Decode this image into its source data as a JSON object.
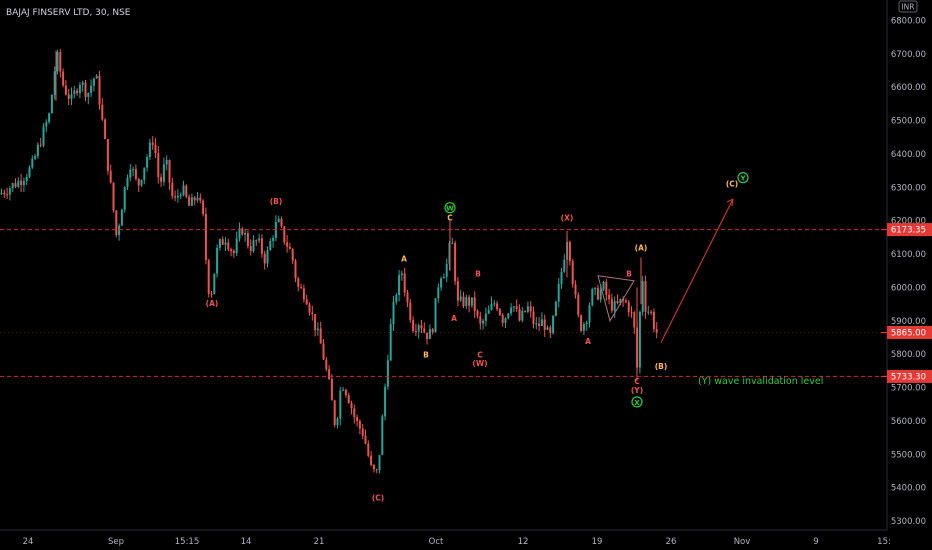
{
  "header": {
    "title": "BAJAJ FINSERV LTD, 30, NSE"
  },
  "currency_badge": "INR",
  "colors": {
    "background": "#000000",
    "up": "#26a69a",
    "down": "#ef5350",
    "level_line": "#d12b2b",
    "axis_text": "#b2b5be",
    "wave_orange": "#ffb74d",
    "wave_red": "#ef5350",
    "wave_green": "#2ecc40",
    "badge_red": "#e53935"
  },
  "chart_data": {
    "type": "candlestick",
    "title": "BAJAJ FINSERV LTD, 30, NSE",
    "y_ticks": [
      "6800.00",
      "6700.00",
      "6600.00",
      "6500.00",
      "6400.00",
      "6300.00",
      "6200.00",
      "6100.00",
      "6000.00",
      "5900.00",
      "5800.00",
      "5700.00",
      "5600.00",
      "5500.00",
      "5400.00",
      "5300.00"
    ],
    "y_tick_values": [
      6800,
      6700,
      6600,
      6500,
      6400,
      6300,
      6200,
      6100,
      6000,
      5900,
      5800,
      5700,
      5600,
      5500,
      5400,
      5300
    ],
    "ylim": [
      5280,
      6840
    ],
    "x_ticks": [
      "24",
      "Sep",
      "15:15",
      "14",
      "21",
      "Oct",
      "12",
      "19",
      "26",
      "Nov",
      "9",
      "15:"
    ],
    "price_path": [
      [
        0,
        6280
      ],
      [
        20,
        6320
      ],
      [
        32,
        6360
      ],
      [
        42,
        6450
      ],
      [
        50,
        6520
      ],
      [
        57,
        6700
      ],
      [
        64,
        6600
      ],
      [
        72,
        6560
      ],
      [
        80,
        6620
      ],
      [
        88,
        6580
      ],
      [
        96,
        6640
      ],
      [
        100,
        6560
      ],
      [
        106,
        6420
      ],
      [
        112,
        6280
      ],
      [
        117,
        6150
      ],
      [
        123,
        6260
      ],
      [
        130,
        6380
      ],
      [
        138,
        6300
      ],
      [
        146,
        6380
      ],
      [
        154,
        6450
      ],
      [
        160,
        6300
      ],
      [
        166,
        6380
      ],
      [
        174,
        6250
      ],
      [
        182,
        6300
      ],
      [
        190,
        6240
      ],
      [
        198,
        6280
      ],
      [
        204,
        6200
      ],
      [
        208,
        6000
      ],
      [
        212,
        5990
      ],
      [
        218,
        6120
      ],
      [
        226,
        6150
      ],
      [
        234,
        6100
      ],
      [
        242,
        6180
      ],
      [
        250,
        6120
      ],
      [
        258,
        6140
      ],
      [
        266,
        6080
      ],
      [
        272,
        6150
      ],
      [
        278,
        6200
      ],
      [
        284,
        6150
      ],
      [
        292,
        6100
      ],
      [
        298,
        6000
      ],
      [
        306,
        5980
      ],
      [
        314,
        5900
      ],
      [
        322,
        5820
      ],
      [
        330,
        5700
      ],
      [
        336,
        5580
      ],
      [
        342,
        5720
      ],
      [
        348,
        5680
      ],
      [
        356,
        5600
      ],
      [
        364,
        5560
      ],
      [
        372,
        5450
      ],
      [
        378,
        5440
      ],
      [
        384,
        5650
      ],
      [
        390,
        5860
      ],
      [
        396,
        5980
      ],
      [
        402,
        6050
      ],
      [
        408,
        5950
      ],
      [
        414,
        5880
      ],
      [
        420,
        5900
      ],
      [
        426,
        5860
      ],
      [
        432,
        5860
      ],
      [
        440,
        6040
      ],
      [
        446,
        6050
      ],
      [
        452,
        6150
      ],
      [
        458,
        5950
      ],
      [
        466,
        5960
      ],
      [
        474,
        5950
      ],
      [
        480,
        5880
      ],
      [
        488,
        5920
      ],
      [
        496,
        5960
      ],
      [
        504,
        5900
      ],
      [
        512,
        5960
      ],
      [
        520,
        5900
      ],
      [
        528,
        5940
      ],
      [
        536,
        5880
      ],
      [
        544,
        5900
      ],
      [
        550,
        5840
      ],
      [
        556,
        5940
      ],
      [
        562,
        6050
      ],
      [
        568,
        6160
      ],
      [
        574,
        6000
      ],
      [
        580,
        5880
      ],
      [
        586,
        5900
      ],
      [
        592,
        5980
      ],
      [
        598,
        5980
      ],
      [
        604,
        6000
      ],
      [
        610,
        5950
      ],
      [
        616,
        5940
      ],
      [
        622,
        5960
      ],
      [
        628,
        5950
      ],
      [
        634,
        5900
      ],
      [
        638,
        5740
      ],
      [
        642,
        6060
      ],
      [
        646,
        5940
      ],
      [
        652,
        5920
      ],
      [
        656,
        5865
      ]
    ],
    "levels": [
      {
        "value": 6173.35,
        "label": "6173.35"
      },
      {
        "value": 5733.3,
        "label": "5733.30"
      }
    ],
    "last_price": {
      "value": 5865.0,
      "label": "5865.00"
    },
    "projection": [
      [
        661,
        5835
      ],
      [
        733,
        6265
      ]
    ],
    "triangle": [
      [
        598,
        6035
      ],
      [
        634,
        6020
      ],
      [
        610,
        5900
      ]
    ],
    "wave_labels": [
      {
        "text": "(B)",
        "x": 276,
        "price": 6250,
        "color": "red",
        "circled": false
      },
      {
        "text": "(A)",
        "x": 212,
        "price": 5945,
        "color": "red",
        "circled": false
      },
      {
        "text": "(C)",
        "x": 378,
        "price": 5362,
        "color": "red",
        "circled": false
      },
      {
        "text": "A",
        "x": 404,
        "price": 6078,
        "color": "orange",
        "circled": false
      },
      {
        "text": "B",
        "x": 426,
        "price": 5790,
        "color": "orange",
        "circled": false
      },
      {
        "text": "W",
        "x": 450,
        "price": 6230,
        "color": "green",
        "circled": true
      },
      {
        "text": "C",
        "x": 450,
        "price": 6200,
        "color": "orange",
        "circled": false
      },
      {
        "text": "B",
        "x": 478,
        "price": 6033,
        "color": "red",
        "circled": false
      },
      {
        "text": "A",
        "x": 454,
        "price": 5900,
        "color": "red",
        "circled": false
      },
      {
        "text": "C",
        "x": 480,
        "price": 5790,
        "color": "red",
        "circled": false
      },
      {
        "text": "(W)",
        "x": 480,
        "price": 5765,
        "color": "red",
        "circled": false
      },
      {
        "text": "(X)",
        "x": 567,
        "price": 6200,
        "color": "red",
        "circled": false
      },
      {
        "text": "A",
        "x": 588,
        "price": 5830,
        "color": "red",
        "circled": false
      },
      {
        "text": "B",
        "x": 629,
        "price": 6033,
        "color": "red",
        "circled": false
      },
      {
        "text": "(A)",
        "x": 641,
        "price": 6110,
        "color": "orange",
        "circled": false
      },
      {
        "text": "C",
        "x": 637,
        "price": 5710,
        "color": "red",
        "circled": false
      },
      {
        "text": "(Y)",
        "x": 637,
        "price": 5683,
        "color": "red",
        "circled": false
      },
      {
        "text": "X",
        "x": 637,
        "price": 5648,
        "color": "green",
        "circled": true
      },
      {
        "text": "(B)",
        "x": 661,
        "price": 5755,
        "color": "orange",
        "circled": false
      },
      {
        "text": "(C)",
        "x": 732,
        "price": 6303,
        "color": "orange",
        "circled": false
      },
      {
        "text": "Y",
        "x": 743,
        "price": 6320,
        "color": "green",
        "circled": true
      }
    ],
    "annotation": {
      "text": "(Y) wave invalidation level",
      "x": 698,
      "price": 5711
    }
  }
}
